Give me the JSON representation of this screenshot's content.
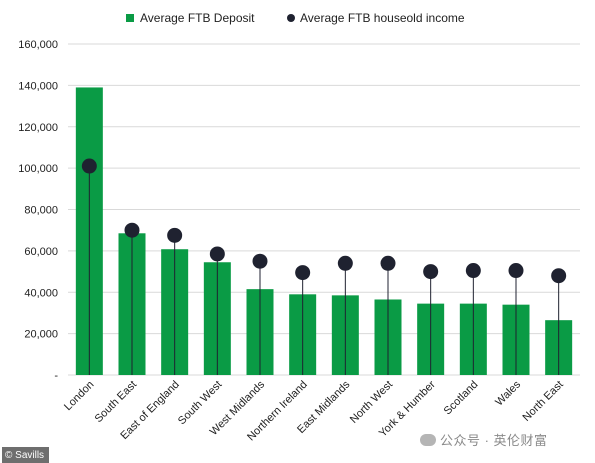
{
  "chart_data": {
    "type": "bar",
    "categories": [
      "London",
      "South East",
      "East of England",
      "South West",
      "West Midlands",
      "Northern Ireland",
      "East Midlands",
      "North West",
      "York & Humber",
      "Scotland",
      "Wales",
      "North East"
    ],
    "series": [
      {
        "name": "Average FTB  Deposit",
        "kind": "bar",
        "color": "#0a9b45",
        "values": [
          139000,
          68500,
          60800,
          54500,
          41500,
          39000,
          38500,
          36500,
          34500,
          34500,
          34000,
          26500
        ]
      },
      {
        "name": "Average FTB houseold income",
        "kind": "dot",
        "color": "#1f2230",
        "values": [
          101000,
          70000,
          67500,
          58500,
          55000,
          49500,
          54000,
          54000,
          50000,
          50500,
          50500,
          48000
        ]
      }
    ],
    "y_ticks": [
      "-",
      "20,000",
      "40,000",
      "60,000",
      "80,000",
      "100,000",
      "120,000",
      "140,000",
      "160,000"
    ],
    "ylim": [
      0,
      160000
    ],
    "grid": true,
    "legend_position": "top"
  },
  "credit": "© Savills",
  "watermark": "公众号 · 英伦财富"
}
